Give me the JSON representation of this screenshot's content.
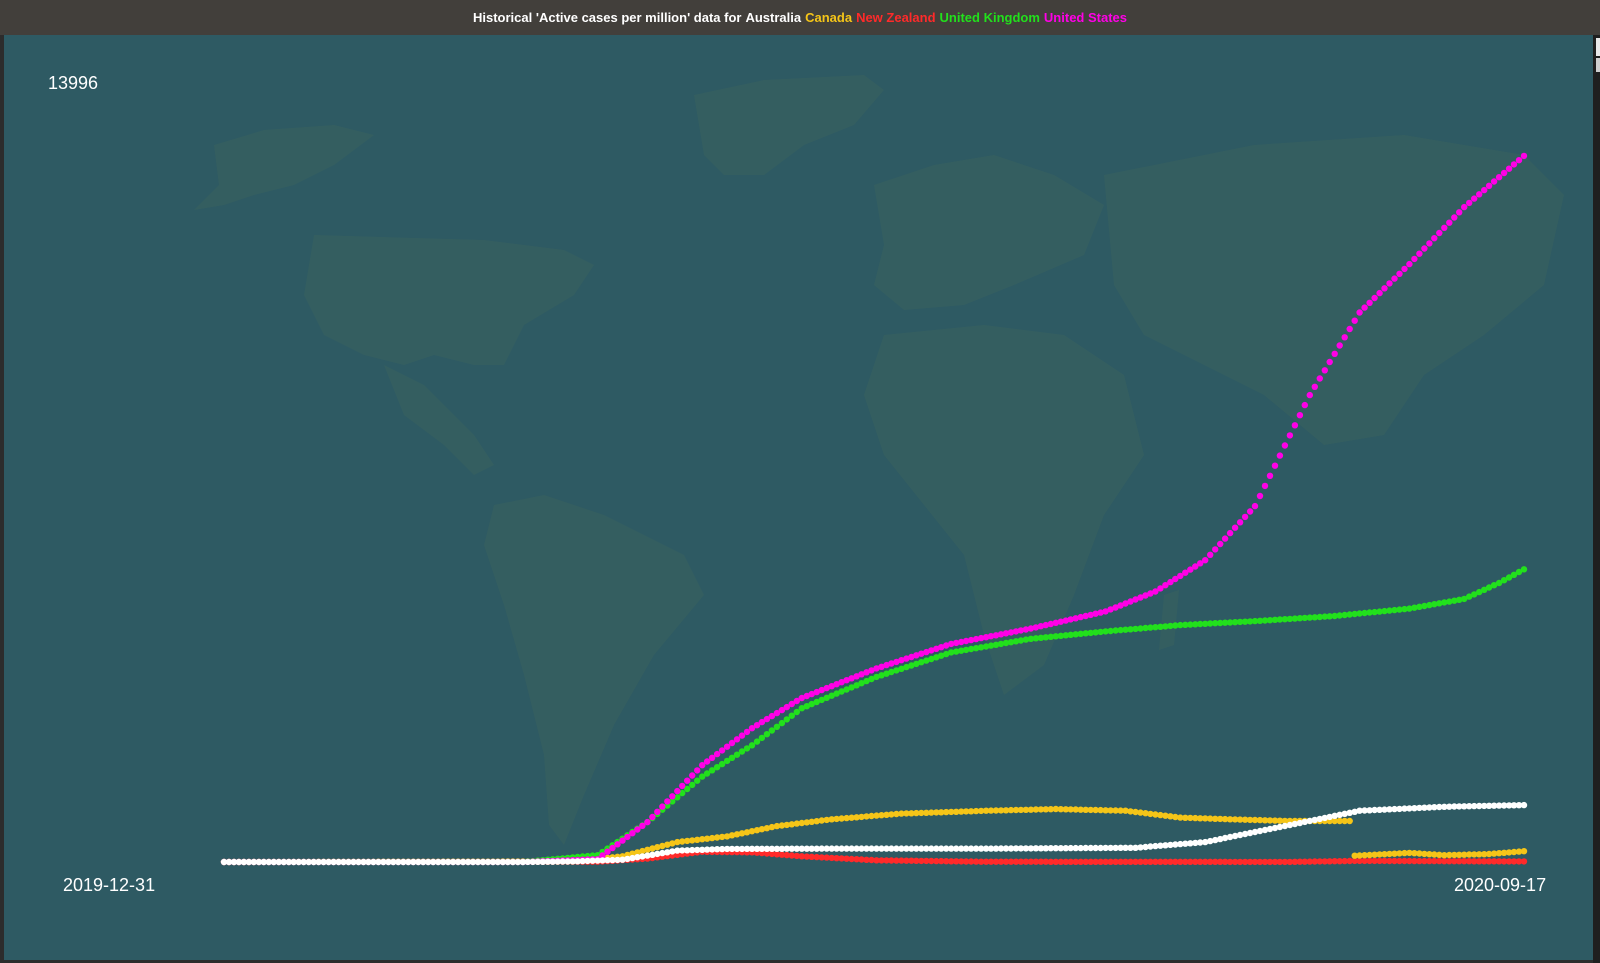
{
  "window": {
    "title_prefix": "Historical 'Active cases per million' data for",
    "countries": [
      {
        "name": "Australia",
        "color": "#ffffff"
      },
      {
        "name": "Canada",
        "color": "#f5c518"
      },
      {
        "name": "New Zealand",
        "color": "#ff2a2a"
      },
      {
        "name": "United Kingdom",
        "color": "#22e01c"
      },
      {
        "name": "United States",
        "color": "#ff00e6"
      }
    ]
  },
  "colors": {
    "background": "#2e5a63",
    "titlebar": "#423f3b",
    "map_land": "#3b6461"
  },
  "chart_data": {
    "type": "scatter",
    "title": "Historical 'Active cases per million' data for Australia Canada New Zealand United Kingdom United States",
    "y_max_label": "13996",
    "x_start_label": "2019-12-31",
    "x_end_label": "2020-09-17",
    "x_range": [
      "2019-12-31",
      "2020-09-17"
    ],
    "ylim": [
      0,
      13996
    ],
    "background": "world map",
    "series": [
      {
        "name": "Australia",
        "color": "#ffffff",
        "points": [
          [
            "2019-12-31",
            0
          ],
          [
            "2020-02-29",
            0
          ],
          [
            "2020-03-10",
            10
          ],
          [
            "2020-03-20",
            40
          ],
          [
            "2020-03-31",
            200
          ],
          [
            "2020-04-10",
            230
          ],
          [
            "2020-05-01",
            235
          ],
          [
            "2020-06-01",
            235
          ],
          [
            "2020-07-01",
            250
          ],
          [
            "2020-07-15",
            350
          ],
          [
            "2020-08-01",
            650
          ],
          [
            "2020-08-15",
            900
          ],
          [
            "2020-09-01",
            970
          ],
          [
            "2020-09-17",
            1000
          ]
        ]
      },
      {
        "name": "Canada",
        "color": "#f5c518",
        "points": [
          [
            "2019-12-31",
            0
          ],
          [
            "2020-03-10",
            10
          ],
          [
            "2020-03-20",
            100
          ],
          [
            "2020-03-31",
            350
          ],
          [
            "2020-04-10",
            450
          ],
          [
            "2020-04-20",
            630
          ],
          [
            "2020-05-01",
            750
          ],
          [
            "2020-05-15",
            850
          ],
          [
            "2020-06-01",
            900
          ],
          [
            "2020-06-15",
            930
          ],
          [
            "2020-06-29",
            900
          ],
          [
            "2020-07-10",
            780
          ],
          [
            "2020-07-20",
            750
          ],
          [
            "2020-08-01",
            720
          ],
          [
            "2020-08-13",
            720
          ]
        ],
        "segment2": [
          [
            "2020-08-14",
            110
          ],
          [
            "2020-08-25",
            160
          ],
          [
            "2020-09-01",
            120
          ],
          [
            "2020-09-10",
            140
          ],
          [
            "2020-09-17",
            190
          ]
        ]
      },
      {
        "name": "New Zealand",
        "color": "#ff2a2a",
        "points": [
          [
            "2019-12-31",
            0
          ],
          [
            "2020-03-15",
            5
          ],
          [
            "2020-03-25",
            60
          ],
          [
            "2020-04-05",
            180
          ],
          [
            "2020-04-15",
            170
          ],
          [
            "2020-04-25",
            100
          ],
          [
            "2020-05-10",
            30
          ],
          [
            "2020-06-01",
            5
          ],
          [
            "2020-08-01",
            2
          ],
          [
            "2020-08-15",
            20
          ],
          [
            "2020-09-17",
            10
          ]
        ]
      },
      {
        "name": "United Kingdom",
        "color": "#22e01c",
        "points": [
          [
            "2019-12-31",
            0
          ],
          [
            "2020-02-29",
            0
          ],
          [
            "2020-03-15",
            120
          ],
          [
            "2020-03-25",
            700
          ],
          [
            "2020-04-05",
            1500
          ],
          [
            "2020-04-15",
            2050
          ],
          [
            "2020-04-25",
            2700
          ],
          [
            "2020-05-10",
            3250
          ],
          [
            "2020-05-25",
            3680
          ],
          [
            "2020-06-10",
            3920
          ],
          [
            "2020-06-25",
            4050
          ],
          [
            "2020-07-10",
            4160
          ],
          [
            "2020-07-25",
            4230
          ],
          [
            "2020-08-10",
            4320
          ],
          [
            "2020-08-25",
            4450
          ],
          [
            "2020-09-05",
            4620
          ],
          [
            "2020-09-12",
            4900
          ],
          [
            "2020-09-17",
            5140
          ]
        ]
      },
      {
        "name": "United States",
        "color": "#ff00e6",
        "points": [
          [
            "2019-12-31",
            0
          ],
          [
            "2020-02-29",
            0
          ],
          [
            "2020-03-15",
            50
          ],
          [
            "2020-03-25",
            700
          ],
          [
            "2020-04-05",
            1700
          ],
          [
            "2020-04-15",
            2350
          ],
          [
            "2020-04-25",
            2880
          ],
          [
            "2020-05-10",
            3400
          ],
          [
            "2020-05-25",
            3830
          ],
          [
            "2020-06-10",
            4100
          ],
          [
            "2020-06-25",
            4400
          ],
          [
            "2020-07-05",
            4750
          ],
          [
            "2020-07-15",
            5300
          ],
          [
            "2020-07-25",
            6250
          ],
          [
            "2020-08-05",
            8200
          ],
          [
            "2020-08-15",
            9650
          ],
          [
            "2020-08-25",
            10500
          ],
          [
            "2020-09-05",
            11500
          ],
          [
            "2020-09-17",
            12400
          ]
        ]
      }
    ]
  }
}
